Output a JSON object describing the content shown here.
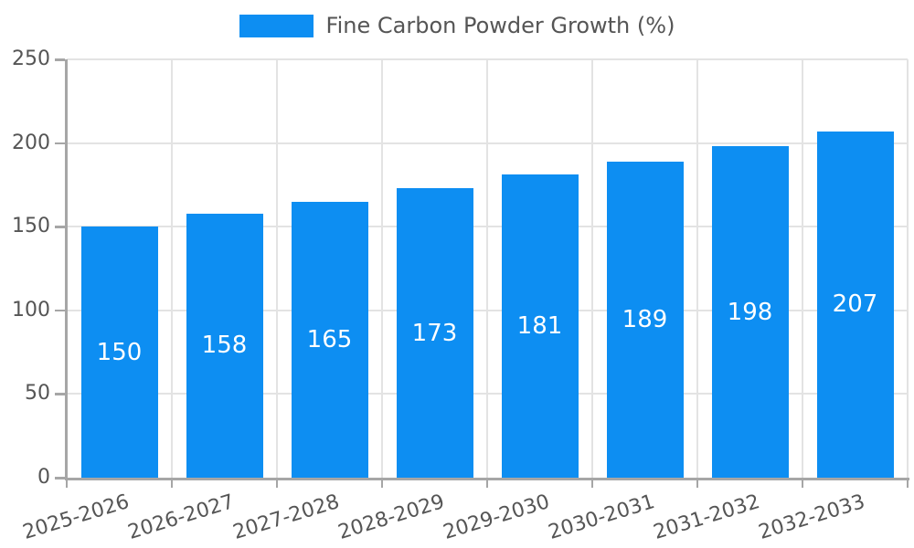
{
  "legend": {
    "label": "Fine Carbon Powder Growth (%)"
  },
  "chart_data": {
    "type": "bar",
    "title": "Fine Carbon Powder Growth (%)",
    "categories": [
      "2025-2026",
      "2026-2027",
      "2027-2028",
      "2028-2029",
      "2029-2030",
      "2030-2031",
      "2031-2032",
      "2032-2033"
    ],
    "series": [
      {
        "name": "Fine Carbon Powder Growth (%)",
        "values": [
          150,
          158,
          165,
          173,
          181,
          189,
          198,
          207
        ]
      }
    ],
    "value_labels_shown": true,
    "xlabel": "",
    "ylabel": "",
    "ylim": [
      0,
      250
    ],
    "yticks": [
      0,
      50,
      100,
      150,
      200,
      250
    ],
    "grid": true,
    "legend_position": "top-center",
    "x_tick_rotation_deg": -17,
    "colors": {
      "bar": "#0d8ef2",
      "value_label": "#ffffff",
      "axis_text": "#555555",
      "grid_line": "#e3e3e3",
      "axis_line": "#a6a6a6",
      "background": "#ffffff"
    }
  }
}
